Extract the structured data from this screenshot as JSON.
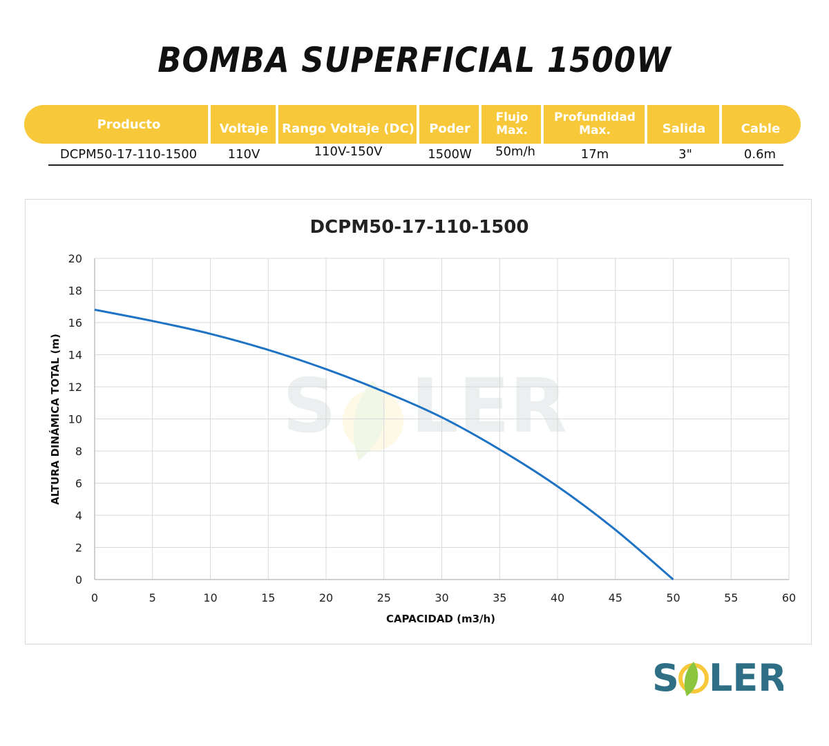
{
  "page_title": "BOMBA SUPERFICIAL 1500W",
  "specs": {
    "headers": [
      "Producto",
      "Voltaje",
      "Rango Voltaje (DC)",
      "Poder",
      "Flujo\nMax.",
      "Profundidad\nMax.",
      "Salida",
      "Cable"
    ],
    "values": [
      "DCPM50-17-110-1500",
      "110V",
      "110V-150V",
      "1500W",
      "50m/h",
      "17m",
      "3\"",
      "0.6m"
    ]
  },
  "colors": {
    "header_bg": "#f7c83a",
    "header_text": "#ffffff",
    "curve": "#1f73c4",
    "grid": "#d9d9d9",
    "logo_text": "#2e6f86",
    "logo_leaf": "#8cc63f",
    "logo_sun": "#f7c83a"
  },
  "chart_data": {
    "type": "line",
    "title": "DCPM50-17-110-1500",
    "xlabel": "CAPACIDAD (m3/h)",
    "ylabel": "ALTURA DINÁMICA TOTAL (m)",
    "xlim": [
      0,
      60
    ],
    "ylim": [
      0,
      20
    ],
    "x_ticks": [
      0,
      5,
      10,
      15,
      20,
      25,
      30,
      35,
      40,
      45,
      50,
      55,
      60
    ],
    "y_ticks": [
      0,
      2,
      4,
      6,
      8,
      10,
      12,
      14,
      16,
      18,
      20
    ],
    "grid": true,
    "series": [
      {
        "x": [
          0,
          5,
          10,
          15,
          20,
          25,
          30,
          35,
          40,
          45,
          50
        ],
        "y": [
          16.8,
          16.1,
          15.3,
          14.3,
          13.1,
          11.7,
          10.1,
          8.1,
          5.8,
          3.1,
          0
        ]
      }
    ]
  },
  "brand": {
    "logo_text_parts": [
      "S",
      "LER"
    ],
    "watermark_text_parts": [
      "S",
      "LER"
    ],
    "icon": "leaf-sun-logo-icon"
  }
}
